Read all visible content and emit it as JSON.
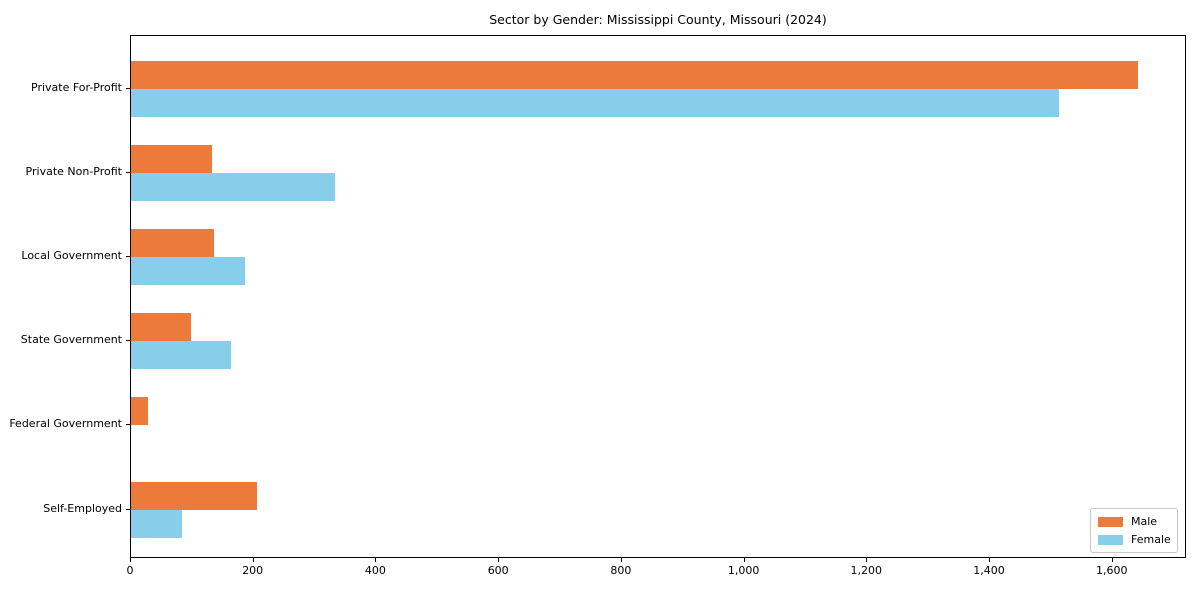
{
  "title": "Sector by Gender: Mississippi County, Missouri (2024)",
  "colors": {
    "male": "#EB7A3B",
    "female": "#87CEEB",
    "axis": "#000000",
    "legend_border": "#c9c9c9"
  },
  "legend": {
    "position": "lower right",
    "items": [
      {
        "label": "Male",
        "color": "#EB7A3B"
      },
      {
        "label": "Female",
        "color": "#87CEEB"
      }
    ]
  },
  "chart_data": {
    "type": "bar",
    "orientation": "horizontal",
    "title": "Sector by Gender: Mississippi County, Missouri (2024)",
    "categories": [
      "Private For-Profit",
      "Private Non-Profit",
      "Local Government",
      "State Government",
      "Federal Government",
      "Self-Employed"
    ],
    "series": [
      {
        "name": "Male",
        "color": "#EB7A3B",
        "values": [
          1641,
          132,
          136,
          98,
          28,
          206
        ]
      },
      {
        "name": "Female",
        "color": "#87CEEB",
        "values": [
          1512,
          333,
          186,
          163,
          0,
          83
        ]
      }
    ],
    "xlabel": "",
    "ylabel": "",
    "xlim": [
      0,
      1721
    ],
    "xticks": [
      0,
      200,
      400,
      600,
      800,
      1000,
      1200,
      1400,
      1600
    ],
    "xtick_labels": [
      "0",
      "200",
      "400",
      "600",
      "800",
      "1,000",
      "1,200",
      "1,400",
      "1,600"
    ],
    "grid": false,
    "legend_position": "lower right"
  }
}
